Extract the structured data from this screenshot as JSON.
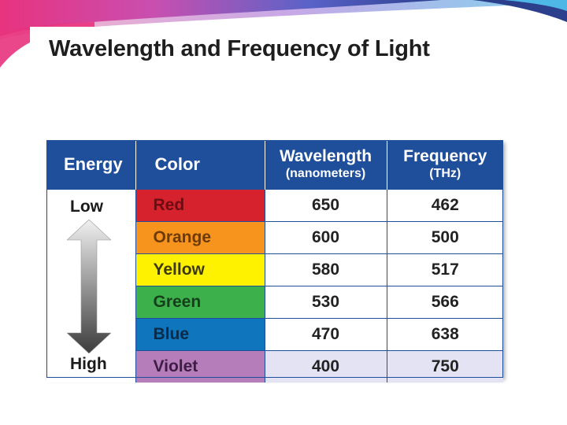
{
  "title": "Wavelength and Frequency of Light",
  "headers": {
    "energy": "Energy",
    "color": "Color",
    "wavelength": "Wavelength",
    "wavelength_unit": "(nanometers)",
    "frequency": "Frequency",
    "frequency_unit": "(THz)"
  },
  "energy_labels": {
    "low": "Low",
    "high": "High"
  },
  "rows": [
    {
      "color": "Red",
      "wavelength": "650",
      "frequency": "462",
      "bg": "#d6222c",
      "text": "#6b0d12"
    },
    {
      "color": "Orange",
      "wavelength": "600",
      "frequency": "500",
      "bg": "#f7941d",
      "text": "#6e3a06"
    },
    {
      "color": "Yellow",
      "wavelength": "580",
      "frequency": "517",
      "bg": "#fff200",
      "text": "#3d3a05"
    },
    {
      "color": "Green",
      "wavelength": "530",
      "frequency": "566",
      "bg": "#3cb04a",
      "text": "#143f1a"
    },
    {
      "color": "Blue",
      "wavelength": "470",
      "frequency": "638",
      "bg": "#0f75bc",
      "text": "#072b48"
    },
    {
      "color": "Violet",
      "wavelength": "400",
      "frequency": "750",
      "bg": "#b57ebb",
      "text": "#3e1c44"
    }
  ],
  "colors": {
    "header_bg": "#1f4e9a",
    "banner_pink": "#e8337e",
    "banner_blue": "#2b3f8c"
  }
}
